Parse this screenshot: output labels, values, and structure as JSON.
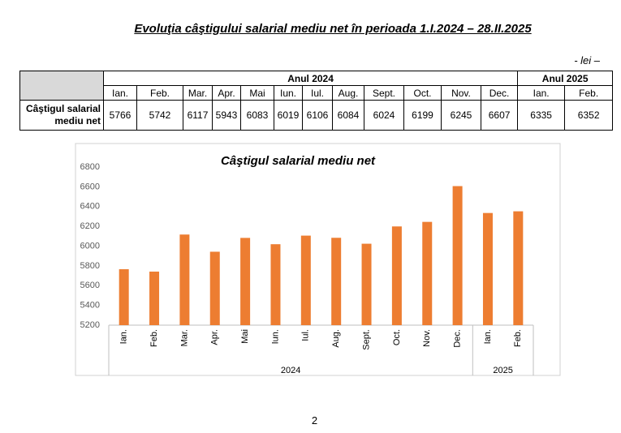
{
  "title": "Evoluţia câştigului salarial mediu net în perioada 1.I.2024 – 28.II.2025",
  "unit": "- lei –",
  "table": {
    "column_groups": [
      {
        "label": "Anul 2024",
        "columns": [
          "Ian.",
          "Feb.",
          "Mar.",
          "Apr.",
          "Mai",
          "Iun.",
          "Iul.",
          "Aug.",
          "Sept.",
          "Oct.",
          "Nov.",
          "Dec."
        ]
      },
      {
        "label": "Anul 2025",
        "columns": [
          "Ian.",
          "Feb."
        ]
      }
    ],
    "row_label": "Câştigul salarial mediu net",
    "values": [
      "5766",
      "5742",
      "6117",
      "5943",
      "6083",
      "6019",
      "6106",
      "6084",
      "6024",
      "6199",
      "6245",
      "6607",
      "6335",
      "6352"
    ]
  },
  "chart_data": {
    "type": "bar",
    "title": "Câştigul salarial mediu net",
    "category_groups": [
      {
        "label": "2024",
        "categories": [
          "Ian.",
          "Feb.",
          "Mar.",
          "Apr.",
          "Mai",
          "Iun.",
          "Iul.",
          "Aug.",
          "Sept.",
          "Oct.",
          "Nov.",
          "Dec."
        ]
      },
      {
        "label": "2025",
        "categories": [
          "Ian.",
          "Feb."
        ]
      }
    ],
    "values": [
      5766,
      5742,
      6117,
      5943,
      6083,
      6019,
      6106,
      6084,
      6024,
      6199,
      6245,
      6607,
      6335,
      6352
    ],
    "color": "#ed7d31",
    "ylim": [
      5200,
      6800
    ],
    "yticks": [
      5200,
      5400,
      5600,
      5800,
      6000,
      6200,
      6400,
      6600,
      6800
    ],
    "grid": false
  },
  "page_number": "2"
}
